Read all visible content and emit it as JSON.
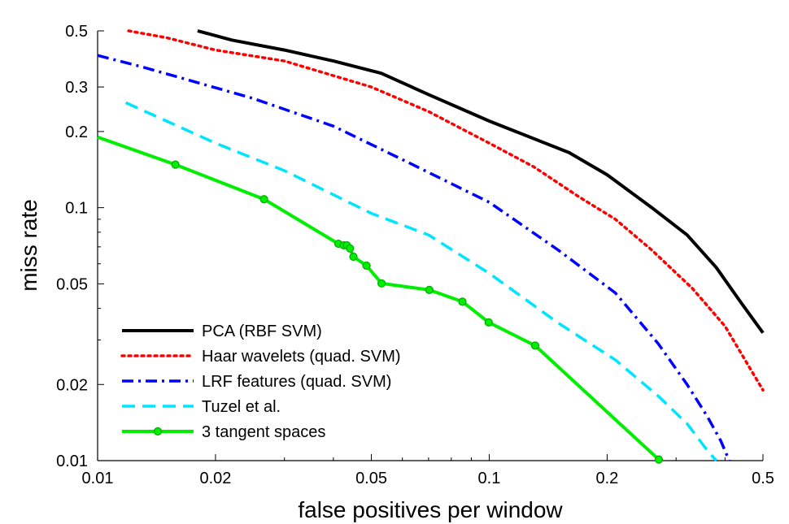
{
  "chart_data": {
    "type": "line",
    "xscale": "log",
    "yscale": "log",
    "xlim": [
      0.01,
      0.5
    ],
    "ylim": [
      0.01,
      0.5
    ],
    "xlabel": "false positives per window",
    "ylabel": "miss rate",
    "xticks": [
      0.01,
      0.02,
      0.05,
      0.1,
      0.2,
      0.5
    ],
    "xtick_labels": [
      "0.01",
      "0.02",
      "0.05",
      "0.1",
      "0.2",
      "0.5"
    ],
    "yticks": [
      0.01,
      0.02,
      0.05,
      0.1,
      0.2,
      0.3,
      0.5
    ],
    "ytick_labels": [
      "0.01",
      "0.02",
      "0.05",
      "0.1",
      "0.2",
      "0.3",
      "0.5"
    ],
    "legend_position": "bottom-left",
    "series": [
      {
        "name": "PCA (RBF SVM)",
        "color": "#000000",
        "style": "solid",
        "markers": false,
        "x": [
          0.018,
          0.022,
          0.03,
          0.04,
          0.053,
          0.07,
          0.1,
          0.16,
          0.2,
          0.26,
          0.32,
          0.38,
          0.44,
          0.5
        ],
        "y": [
          0.5,
          0.46,
          0.42,
          0.38,
          0.34,
          0.28,
          0.22,
          0.165,
          0.135,
          0.1,
          0.078,
          0.058,
          0.042,
          0.032
        ]
      },
      {
        "name": "Haar wavelets (quad. SVM)",
        "color": "#ff0000",
        "style": "dotted",
        "markers": false,
        "x": [
          0.012,
          0.015,
          0.02,
          0.03,
          0.05,
          0.07,
          0.1,
          0.13,
          0.17,
          0.21,
          0.26,
          0.33,
          0.4,
          0.45,
          0.5
        ],
        "y": [
          0.5,
          0.47,
          0.42,
          0.38,
          0.3,
          0.24,
          0.18,
          0.145,
          0.11,
          0.09,
          0.068,
          0.048,
          0.034,
          0.025,
          0.019
        ]
      },
      {
        "name": "LRF features (quad. SVM)",
        "color": "#0000ff",
        "style": "dashdot",
        "markers": false,
        "x": [
          0.01,
          0.013,
          0.017,
          0.025,
          0.04,
          0.06,
          0.1,
          0.15,
          0.21,
          0.27,
          0.32,
          0.36,
          0.39,
          0.41
        ],
        "y": [
          0.4,
          0.36,
          0.32,
          0.27,
          0.21,
          0.155,
          0.105,
          0.068,
          0.046,
          0.029,
          0.02,
          0.015,
          0.012,
          0.01
        ]
      },
      {
        "name": "Tuzel et al.",
        "color": "#00e5ff",
        "style": "dashed",
        "markers": false,
        "x": [
          0.0118,
          0.015,
          0.02,
          0.03,
          0.05,
          0.07,
          0.1,
          0.15,
          0.21,
          0.27,
          0.32,
          0.36,
          0.38
        ],
        "y": [
          0.26,
          0.22,
          0.18,
          0.14,
          0.095,
          0.078,
          0.055,
          0.035,
          0.025,
          0.018,
          0.014,
          0.011,
          0.01
        ]
      },
      {
        "name": "3 tangent spaces",
        "color": "#00ee00",
        "style": "solid",
        "markers": true,
        "x": [
          0.01,
          0.0158,
          0.0266,
          0.0412,
          0.0425,
          0.0433,
          0.0441,
          0.045,
          0.0486,
          0.0531,
          0.0703,
          0.0854,
          0.0997,
          0.131,
          0.271
        ],
        "y": [
          0.19,
          0.148,
          0.108,
          0.072,
          0.071,
          0.071,
          0.069,
          0.064,
          0.059,
          0.0502,
          0.0473,
          0.0425,
          0.0352,
          0.0285,
          0.0101
        ],
        "marker_x": [
          0.0158,
          0.0266,
          0.0412,
          0.0425,
          0.0433,
          0.0441,
          0.045,
          0.0486,
          0.0531,
          0.0703,
          0.0854,
          0.0997,
          0.131,
          0.271
        ],
        "marker_y": [
          0.148,
          0.108,
          0.072,
          0.071,
          0.071,
          0.069,
          0.064,
          0.059,
          0.0502,
          0.0473,
          0.0425,
          0.0352,
          0.0285,
          0.0101
        ]
      }
    ]
  }
}
